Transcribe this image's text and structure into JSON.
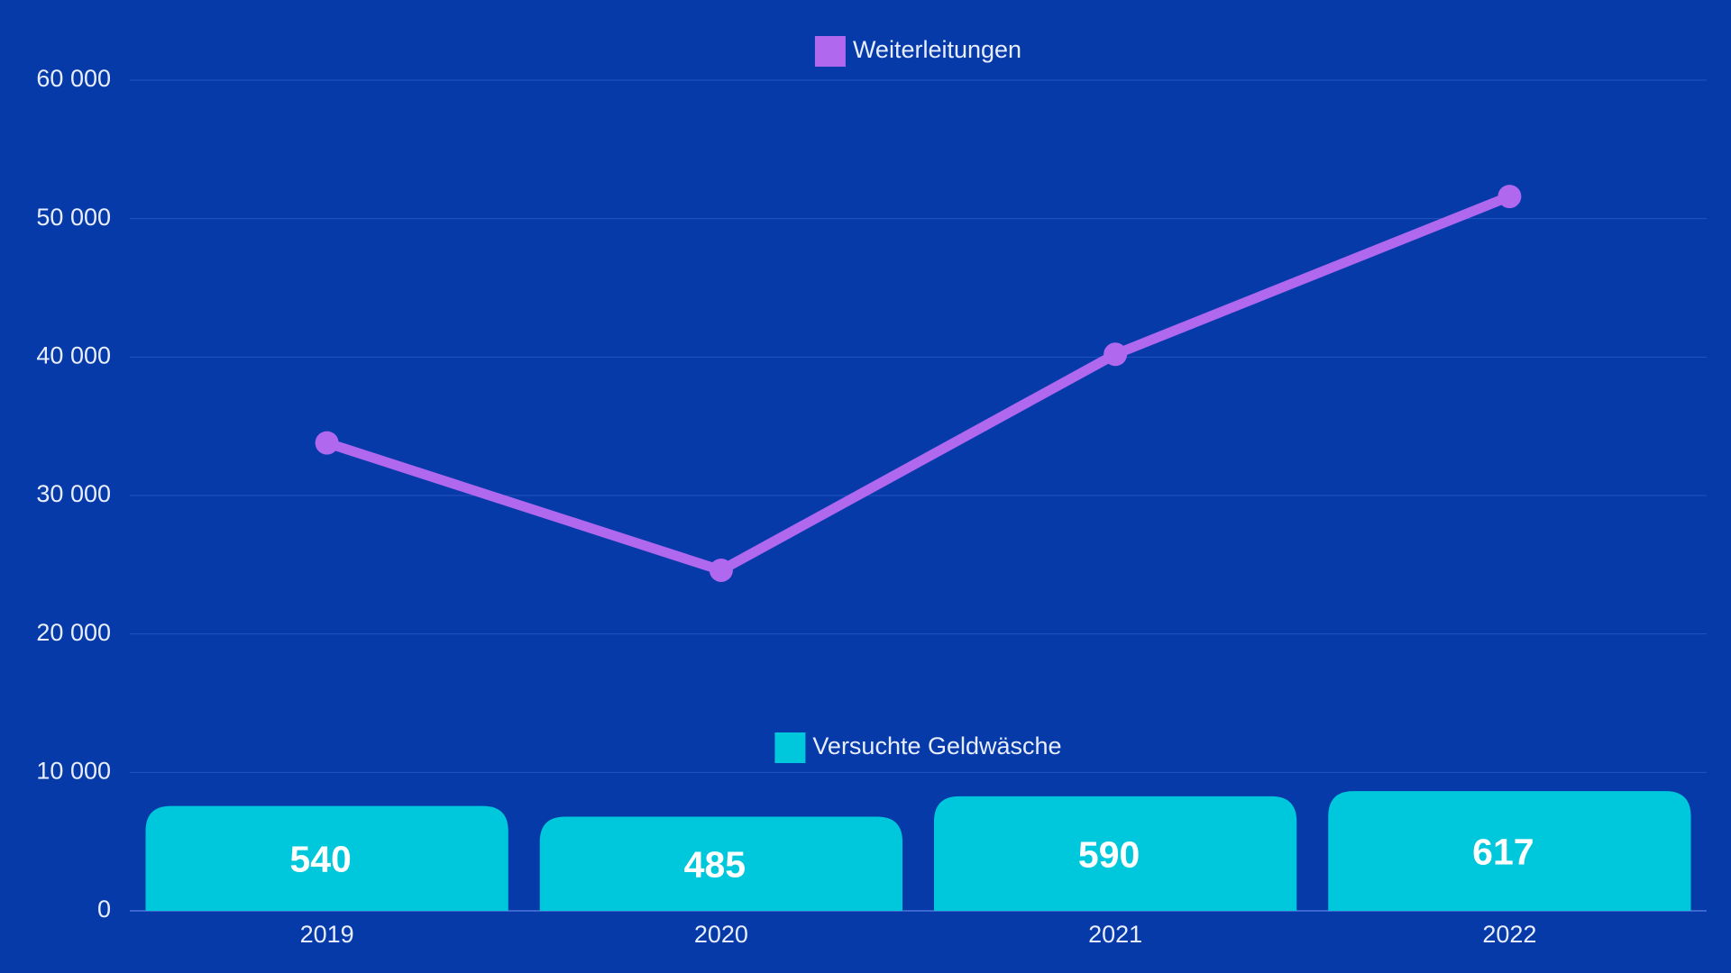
{
  "chart_data": {
    "type": "combo",
    "categories": [
      "2019",
      "2020",
      "2021",
      "2022"
    ],
    "series": [
      {
        "name": "Weiterleitungen",
        "type": "line",
        "color": "#b068ee",
        "values": [
          33800,
          24600,
          40200,
          51600
        ]
      },
      {
        "name": "Versuchte Geldwäsche",
        "type": "bar",
        "axis": "y2",
        "color": "#00c8dc",
        "values": [
          540,
          485,
          590,
          617
        ]
      }
    ],
    "ylim": [
      0,
      60000
    ],
    "yticks": [
      0,
      {
        "value": 10000,
        "label": "10 000"
      },
      {
        "value": 20000,
        "label": "20 000"
      },
      {
        "value": 30000,
        "label": "30 000"
      },
      {
        "value": 40000,
        "label": "40 000"
      },
      {
        "value": 50000,
        "label": "50 000"
      },
      {
        "value": 60000,
        "label": "60 000"
      }
    ],
    "y2lim": [
      0,
      4280
    ],
    "grid": true
  }
}
